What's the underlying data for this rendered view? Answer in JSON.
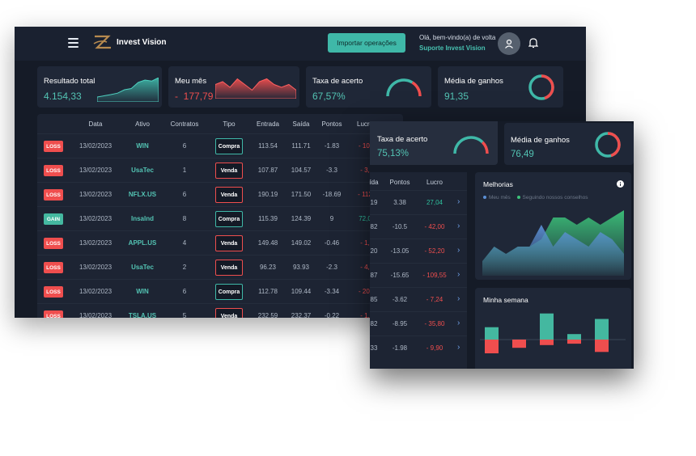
{
  "app": {
    "title": "Invest Vision",
    "import_button": "Importar operações",
    "greeting": "Olá, bem-vindo(a) de volta",
    "support": "Suporte Invest Vision"
  },
  "icons": {
    "menu": "hamburger-icon",
    "logo": "logo-icon",
    "user": "user-icon",
    "bell": "bell-icon",
    "info": "info-icon",
    "chevron": "chevron-right-icon"
  },
  "colors": {
    "accent": "#3fb8a8",
    "loss": "#ef4e4e",
    "gain": "#44b8a0",
    "bg": "#151b27",
    "card": "#1f2737"
  },
  "cards": {
    "total": {
      "label": "Resultado total",
      "value": "4.154,33"
    },
    "month": {
      "label": "Meu mês",
      "sign": "-",
      "value": "177,79"
    },
    "hit_rate": {
      "label": "Taxa de acerto",
      "value": "67,57%",
      "gauge": 0.6757
    },
    "avg_gain": {
      "label": "Média de ganhos",
      "value": "91,35"
    }
  },
  "table": {
    "headers": [
      "Data",
      "Ativo",
      "Contratos",
      "Tipo",
      "Entrada",
      "Saída",
      "Pontos",
      "Lucro"
    ],
    "rows": [
      {
        "result": "LOSS",
        "date": "13/02/2023",
        "asset": "WIN",
        "contracts": "6",
        "type": "Compra",
        "entry": "113.54",
        "exit": "111.71",
        "points": "-1.83",
        "profit": "- 10,"
      },
      {
        "result": "LOSS",
        "date": "13/02/2023",
        "asset": "UsaTec",
        "contracts": "1",
        "type": "Venda",
        "entry": "107.87",
        "exit": "104.57",
        "points": "-3.3",
        "profit": "- 3,"
      },
      {
        "result": "LOSS",
        "date": "13/02/2023",
        "asset": "NFLX.US",
        "contracts": "6",
        "type": "Venda",
        "entry": "190.19",
        "exit": "171.50",
        "points": "-18.69",
        "profit": "- 112"
      },
      {
        "result": "GAIN",
        "date": "13/02/2023",
        "asset": "Insalnd",
        "contracts": "8",
        "type": "Compra",
        "entry": "115.39",
        "exit": "124.39",
        "points": "9",
        "profit": "72,0"
      },
      {
        "result": "LOSS",
        "date": "13/02/2023",
        "asset": "APPL.US",
        "contracts": "4",
        "type": "Venda",
        "entry": "149.48",
        "exit": "149.02",
        "points": "-0.46",
        "profit": "- 1,"
      },
      {
        "result": "LOSS",
        "date": "13/02/2023",
        "asset": "UsaTec",
        "contracts": "2",
        "type": "Venda",
        "entry": "96.23",
        "exit": "93.93",
        "points": "-2.3",
        "profit": "- 4,"
      },
      {
        "result": "LOSS",
        "date": "13/02/2023",
        "asset": "WIN",
        "contracts": "6",
        "type": "Compra",
        "entry": "112.78",
        "exit": "109.44",
        "points": "-3.34",
        "profit": "- 20,"
      },
      {
        "result": "LOSS",
        "date": "13/02/2023",
        "asset": "TSLA.US",
        "contracts": "5",
        "type": "Venda",
        "entry": "232.59",
        "exit": "232.37",
        "points": "-0.22",
        "profit": "- 1,"
      }
    ]
  },
  "front": {
    "hit_rate": {
      "label": "Taxa de acerto",
      "value": "75,13%",
      "gauge": 0.7513
    },
    "avg_gain": {
      "label": "Média de ganhos",
      "value": "76,49"
    },
    "table_headers": [
      "ída",
      "Pontos",
      "Lucro"
    ],
    "rows": [
      {
        "exit": "19",
        "points": "3.38",
        "profit": "27,04",
        "positive": true
      },
      {
        "exit": "82",
        "points": "-10.5",
        "profit": "- 42,00",
        "positive": false
      },
      {
        "exit": "20",
        "points": "-13.05",
        "profit": "- 52,20",
        "positive": false
      },
      {
        "exit": "87",
        "points": "-15.65",
        "profit": "- 109,55",
        "positive": false
      },
      {
        "exit": "85",
        "points": "-3.62",
        "profit": "- 7,24",
        "positive": false
      },
      {
        "exit": "82",
        "points": "-8.95",
        "profit": "- 35,80",
        "positive": false
      },
      {
        "exit": "33",
        "points": "-1.98",
        "profit": "- 9,90",
        "positive": false
      }
    ],
    "improvements": {
      "title": "Melhorias",
      "legend_month": "Meu mês",
      "legend_advice": "Seguindo nossos conselhos"
    },
    "week": {
      "title": "Minha semana"
    }
  },
  "chart_data": [
    {
      "type": "area",
      "series": [
        {
          "values": [
            2,
            2.5,
            3,
            3.6,
            5,
            5.5,
            8,
            9,
            8.6,
            10
          ]
        }
      ]
    },
    {
      "type": "area",
      "series": [
        {
          "values": [
            5,
            6,
            4,
            7,
            5,
            3,
            6,
            7,
            5,
            4,
            5,
            3
          ]
        }
      ]
    },
    {
      "type": "area",
      "title": "Melhorias",
      "series": [
        {
          "name": "Meu mês",
          "values": [
            2,
            4,
            3,
            4,
            4,
            7,
            4,
            6,
            5,
            4,
            6,
            5,
            3
          ]
        },
        {
          "name": "Seguindo nossos conselhos",
          "values": [
            2,
            4,
            3,
            4,
            4,
            5,
            8,
            8,
            7,
            8,
            7,
            8,
            9
          ]
        }
      ]
    },
    {
      "type": "bar",
      "title": "Minha semana",
      "series": [
        {
          "values": [
            18,
            0,
            38,
            8,
            30
          ]
        },
        {
          "values": [
            -20,
            -12,
            -8,
            -6,
            -18
          ]
        }
      ]
    }
  ]
}
